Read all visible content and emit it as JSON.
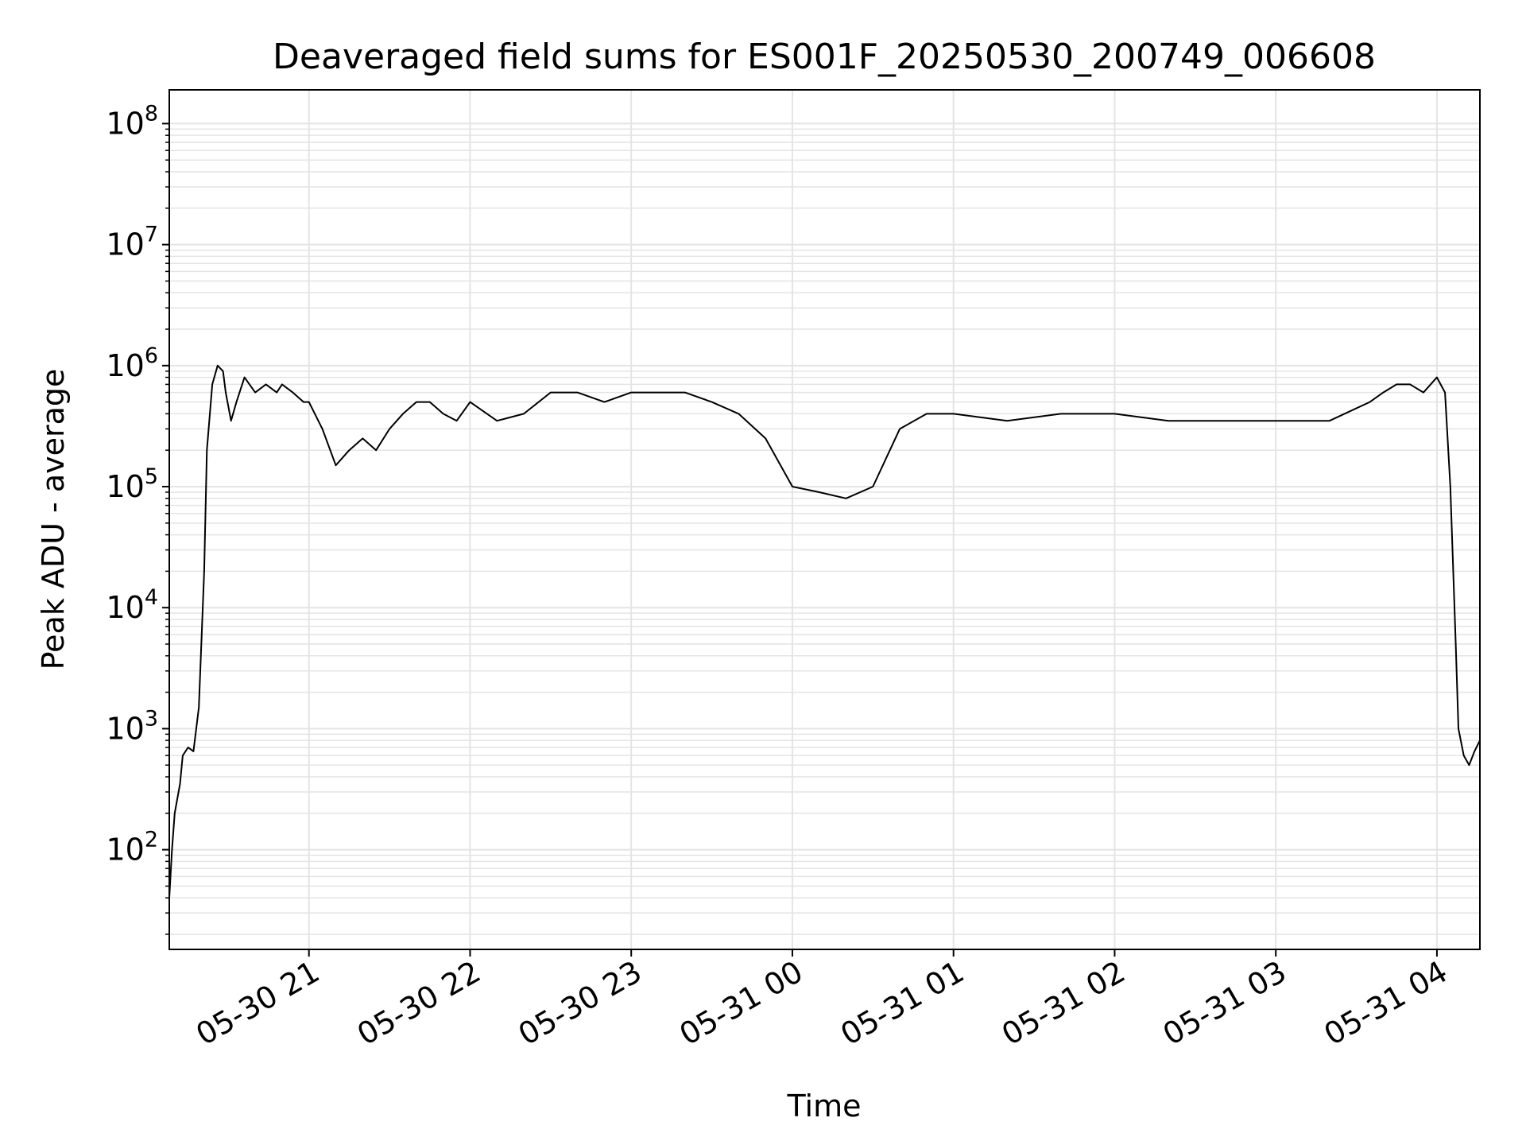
{
  "chart_data": {
    "type": "line",
    "title": "Deaveraged field sums for ES001F_20250530_200749_006608",
    "xlabel": "Time",
    "ylabel": "Peak ADU - average",
    "yscale": "log",
    "ylim": [
      15,
      190000000
    ],
    "xlim": [
      "2025-05-30 20:08",
      "2025-05-31 04:16"
    ],
    "grid": true,
    "line_color": "#000000",
    "grid_color": "#e4e4e4",
    "x_ticks": [
      {
        "value": "2025-05-30 21:00",
        "label": "05-30 21"
      },
      {
        "value": "2025-05-30 22:00",
        "label": "05-30 22"
      },
      {
        "value": "2025-05-30 23:00",
        "label": "05-30 23"
      },
      {
        "value": "2025-05-31 00:00",
        "label": "05-31 00"
      },
      {
        "value": "2025-05-31 01:00",
        "label": "05-31 01"
      },
      {
        "value": "2025-05-31 02:00",
        "label": "05-31 02"
      },
      {
        "value": "2025-05-31 03:00",
        "label": "05-31 03"
      },
      {
        "value": "2025-05-31 04:00",
        "label": "05-31 04"
      }
    ],
    "y_ticks": [
      {
        "value": 100,
        "base": "10",
        "exp": "2"
      },
      {
        "value": 1000,
        "base": "10",
        "exp": "3"
      },
      {
        "value": 10000,
        "base": "10",
        "exp": "4"
      },
      {
        "value": 100000,
        "base": "10",
        "exp": "5"
      },
      {
        "value": 1000000,
        "base": "10",
        "exp": "6"
      },
      {
        "value": 10000000,
        "base": "10",
        "exp": "7"
      },
      {
        "value": 100000000,
        "base": "10",
        "exp": "8"
      }
    ],
    "series": [
      {
        "x": [
          "2025-05-30 20:08",
          "2025-05-30 20:09",
          "2025-05-30 20:10",
          "2025-05-30 20:12",
          "2025-05-30 20:13",
          "2025-05-30 20:15",
          "2025-05-30 20:17",
          "2025-05-30 20:19",
          "2025-05-30 20:21",
          "2025-05-30 20:22",
          "2025-05-30 20:24",
          "2025-05-30 20:26",
          "2025-05-30 20:28",
          "2025-05-30 20:29",
          "2025-05-30 20:31",
          "2025-05-30 20:33",
          "2025-05-30 20:36",
          "2025-05-30 20:40",
          "2025-05-30 20:44",
          "2025-05-30 20:48",
          "2025-05-30 20:50",
          "2025-05-30 20:54",
          "2025-05-30 20:58",
          "2025-05-30 21:00",
          "2025-05-30 21:05",
          "2025-05-30 21:10",
          "2025-05-30 21:15",
          "2025-05-30 21:20",
          "2025-05-30 21:25",
          "2025-05-30 21:30",
          "2025-05-30 21:35",
          "2025-05-30 21:40",
          "2025-05-30 21:45",
          "2025-05-30 21:50",
          "2025-05-30 21:55",
          "2025-05-30 22:00",
          "2025-05-30 22:10",
          "2025-05-30 22:20",
          "2025-05-30 22:30",
          "2025-05-30 22:40",
          "2025-05-30 22:50",
          "2025-05-30 23:00",
          "2025-05-30 23:10",
          "2025-05-30 23:20",
          "2025-05-30 23:30",
          "2025-05-30 23:40",
          "2025-05-30 23:50",
          "2025-05-31 00:00",
          "2025-05-31 00:10",
          "2025-05-31 00:20",
          "2025-05-31 00:30",
          "2025-05-31 00:40",
          "2025-05-31 00:50",
          "2025-05-31 01:00",
          "2025-05-31 01:20",
          "2025-05-31 01:40",
          "2025-05-31 02:00",
          "2025-05-31 02:20",
          "2025-05-31 02:40",
          "2025-05-31 03:00",
          "2025-05-31 03:20",
          "2025-05-31 03:35",
          "2025-05-31 03:40",
          "2025-05-31 03:45",
          "2025-05-31 03:50",
          "2025-05-31 03:55",
          "2025-05-31 04:00",
          "2025-05-31 04:03",
          "2025-05-31 04:05",
          "2025-05-31 04:07",
          "2025-05-31 04:08",
          "2025-05-31 04:10",
          "2025-05-31 04:12",
          "2025-05-31 04:14",
          "2025-05-31 04:16"
        ],
        "y": [
          40,
          100,
          200,
          350,
          600,
          700,
          650,
          1500,
          20000,
          200000,
          700000,
          1000000,
          900000,
          600000,
          350000,
          500000,
          800000,
          600000,
          700000,
          600000,
          700000,
          600000,
          500000,
          500000,
          300000,
          150000,
          200000,
          250000,
          200000,
          300000,
          400000,
          500000,
          500000,
          400000,
          350000,
          500000,
          350000,
          400000,
          600000,
          600000,
          500000,
          600000,
          600000,
          600000,
          500000,
          400000,
          250000,
          100000,
          90000,
          80000,
          100000,
          300000,
          400000,
          400000,
          350000,
          400000,
          400000,
          350000,
          350000,
          350000,
          350000,
          500000,
          600000,
          700000,
          700000,
          600000,
          800000,
          600000,
          100000,
          5000,
          1000,
          600,
          500,
          650,
          800
        ]
      }
    ]
  }
}
